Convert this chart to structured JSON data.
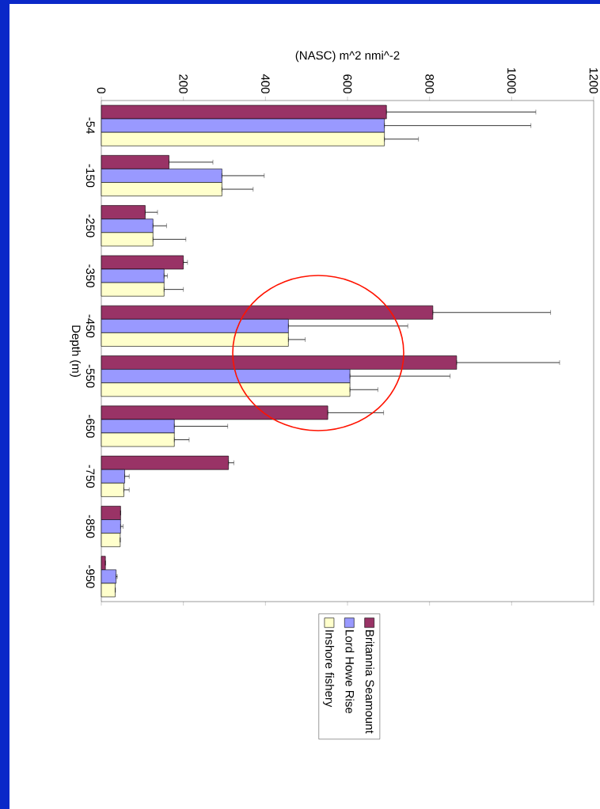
{
  "chart_data": {
    "type": "bar",
    "orientation": "horizontal",
    "xlabel": "(NASC) m^2 nmi^-2",
    "ylabel": "Depth (m)",
    "categories": [
      "-54",
      "-150",
      "-250",
      "-350",
      "-450",
      "-550",
      "-650",
      "-750",
      "-850",
      "-950"
    ],
    "xlim": [
      0,
      1200
    ],
    "xticks": [
      0,
      200,
      400,
      600,
      800,
      1000,
      1200
    ],
    "series": [
      {
        "name": "Britannia Seamount",
        "color": "#993366",
        "values": [
          695,
          165,
          107,
          200,
          808,
          866,
          552,
          310,
          47,
          10
        ],
        "errors": [
          [
            695,
            1059
          ],
          [
            165,
            272
          ],
          [
            107,
            137
          ],
          [
            200,
            210
          ],
          [
            808,
            1095
          ],
          [
            866,
            1117
          ],
          [
            552,
            688
          ],
          [
            310,
            323
          ],
          null,
          null
        ]
      },
      {
        "name": "Lord Howe Rise",
        "color": "#9999ff",
        "values": [
          690,
          294,
          126,
          153,
          456,
          606,
          178,
          57,
          47,
          36
        ],
        "errors": [
          [
            690,
            1047
          ],
          [
            294,
            397
          ],
          [
            126,
            159
          ],
          [
            153,
            161
          ],
          [
            456,
            747
          ],
          [
            606,
            850
          ],
          [
            178,
            308
          ],
          [
            57,
            68
          ],
          [
            47,
            53
          ],
          [
            36,
            39
          ]
        ]
      },
      {
        "name": "Inshore fishery",
        "color": "#ffffcc",
        "values": [
          690,
          294,
          126,
          153,
          456,
          606,
          178,
          55,
          46,
          34
        ],
        "errors": [
          [
            690,
            773
          ],
          [
            294,
            370
          ],
          [
            126,
            206
          ],
          [
            153,
            200
          ],
          [
            456,
            497
          ],
          [
            606,
            674
          ],
          [
            178,
            214
          ],
          [
            55,
            68
          ],
          null,
          null
        ]
      }
    ],
    "legend": "bottom",
    "grid": false
  }
}
